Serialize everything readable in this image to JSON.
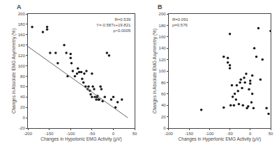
{
  "chart_data": [
    {
      "type": "scatter",
      "title": "A",
      "xlabel": "Changes in Hypotonic EMG Activity (μV)",
      "ylabel": "Changes in Absolute EMG Asymmetry (%)",
      "annotation": "R=0.539\nY=-0.587x+19.821\np<0.0005",
      "xlim": [
        -200,
        50
      ],
      "ylim": [
        -20,
        200
      ],
      "xticks": [
        -200,
        -150,
        -100,
        -50,
        0,
        50
      ],
      "yticks": [
        -20,
        0,
        20,
        40,
        60,
        80,
        100,
        120,
        140,
        160,
        180,
        200
      ],
      "grid": false,
      "series": [
        {
          "type": "scatter",
          "marker": "circle",
          "color": "#1a1a1a",
          "x": [
            -190,
            -165,
            -155,
            -155,
            -148,
            -135,
            -130,
            -115,
            -110,
            -107,
            -100,
            -100,
            -98,
            -95,
            -90,
            -85,
            -83,
            -80,
            -75,
            -73,
            -70,
            -68,
            -65,
            -63,
            -60,
            -58,
            -55,
            -53,
            -50,
            -50,
            -48,
            -45,
            -43,
            -40,
            -38,
            -37,
            -35,
            -33,
            -30,
            -28,
            -25,
            -20,
            -15,
            -10,
            -5,
            0,
            5,
            10,
            20
          ],
          "values": [
            175,
            165,
            175,
            170,
            125,
            125,
            105,
            140,
            125,
            80,
            123,
            115,
            105,
            90,
            80,
            85,
            95,
            88,
            88,
            75,
            68,
            85,
            60,
            90,
            55,
            60,
            52,
            45,
            40,
            85,
            60,
            55,
            40,
            35,
            40,
            42,
            35,
            35,
            60,
            55,
            32,
            40,
            125,
            120,
            35,
            40,
            20,
            30,
            35
          ]
        },
        {
          "type": "line",
          "line_style": "solid",
          "color": "#666666",
          "x": [
            -200,
            34
          ],
          "values": [
            137.221,
            -0.137
          ]
        }
      ]
    },
    {
      "type": "scatter",
      "title": "B",
      "xlabel": "Changes in Hypertonic EMG Activity (μV)",
      "ylabel": "Changes in Absolute EMG Asymmetry (%)",
      "annotation": "R=0.091\np=0.576",
      "xlim": [
        -200,
        50
      ],
      "ylim": [
        0,
        200
      ],
      "xticks": [
        -200,
        -150,
        -100,
        -50,
        0,
        50
      ],
      "yticks": [
        0,
        20,
        40,
        60,
        80,
        100,
        120,
        140,
        160,
        180,
        200
      ],
      "grid": false,
      "series": [
        {
          "type": "scatter",
          "marker": "circle",
          "color": "#1a1a1a",
          "x": [
            -120,
            -65,
            -65,
            -55,
            -55,
            -50,
            -50,
            -50,
            -48,
            -45,
            -43,
            -40,
            -38,
            -35,
            -33,
            -30,
            -28,
            -25,
            -23,
            -20,
            -18,
            -15,
            -13,
            -10,
            -8,
            -5,
            -3,
            0,
            0,
            3,
            5,
            5,
            8,
            10,
            15,
            20,
            25,
            30,
            40,
            45,
            50
          ],
          "values": [
            32,
            125,
            36,
            123,
            115,
            165,
            110,
            105,
            40,
            75,
            55,
            40,
            60,
            50,
            75,
            65,
            42,
            80,
            85,
            70,
            40,
            88,
            80,
            95,
            35,
            38,
            68,
            83,
            78,
            45,
            92,
            60,
            35,
            140,
            125,
            175,
            85,
            120,
            35,
            25,
            170
          ]
        }
      ]
    }
  ]
}
